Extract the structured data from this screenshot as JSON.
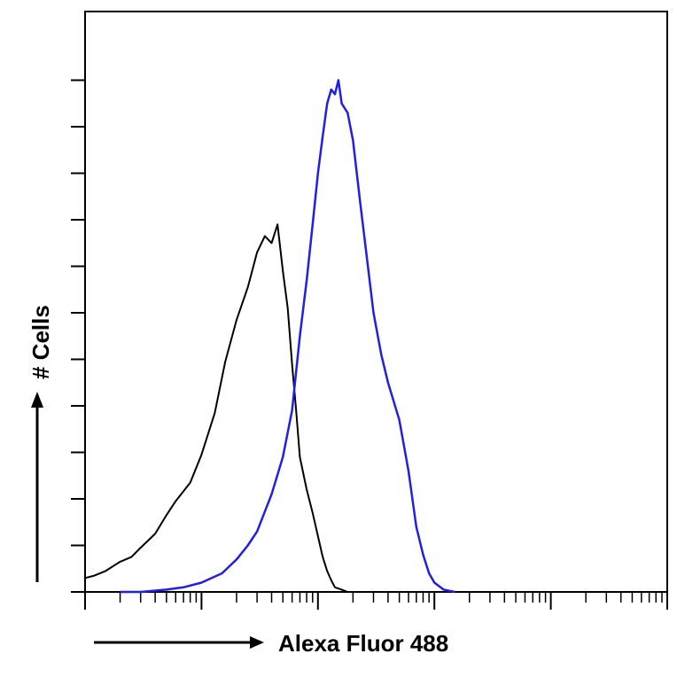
{
  "chart_data": {
    "type": "line",
    "title": "",
    "xlabel": "Alexa Fluor 488",
    "ylabel": "# Cells",
    "x_scale": "log",
    "xlim": [
      0.1,
      10000
    ],
    "ylim": [
      0,
      120
    ],
    "grid": false,
    "legend": "none",
    "series": [
      {
        "color": "#000000",
        "x": [
          0.1,
          0.12,
          0.15,
          0.2,
          0.25,
          0.3,
          0.4,
          0.5,
          0.6,
          0.8,
          1.0,
          1.3,
          1.6,
          2.0,
          2.5,
          3.0,
          3.5,
          4.0,
          4.5,
          5.0,
          5.5,
          6.0,
          6.5,
          7.0,
          8.0,
          9.0,
          10.0,
          11.0,
          12.0,
          13.0,
          14.0,
          16.0,
          18.0,
          20.0
        ],
        "y": [
          3,
          3.5,
          4.5,
          6.5,
          7.5,
          9.5,
          12.5,
          16.5,
          19.5,
          23.5,
          29.5,
          38.5,
          49.5,
          58.5,
          65.5,
          73,
          76.5,
          75,
          79,
          69,
          61,
          49,
          39,
          29,
          22,
          17,
          12,
          7.5,
          4.5,
          2.5,
          1,
          0.5,
          0,
          0
        ]
      },
      {
        "color": "#1f1fe6",
        "x": [
          0.2,
          0.3,
          0.5,
          0.7,
          1.0,
          1.5,
          2.0,
          2.5,
          3.0,
          4.0,
          5.0,
          6.0,
          7.0,
          8.0,
          9.0,
          10.0,
          11.0,
          12.0,
          13.0,
          14.0,
          15.0,
          16.0,
          18.0,
          20.0,
          23.0,
          26.0,
          30.0,
          35.0,
          40.0,
          50.0,
          60.0,
          70.0,
          80.0,
          90.0,
          100.0,
          120.0,
          150.0
        ],
        "y": [
          0,
          0,
          0.5,
          1,
          2,
          4,
          7,
          10,
          13,
          21,
          29,
          39,
          55,
          67,
          79,
          90,
          98,
          105,
          108,
          107,
          110,
          105,
          103,
          97,
          84,
          73,
          60,
          51,
          45,
          37,
          26,
          14,
          8,
          4,
          2,
          0.5,
          0
        ]
      }
    ]
  }
}
